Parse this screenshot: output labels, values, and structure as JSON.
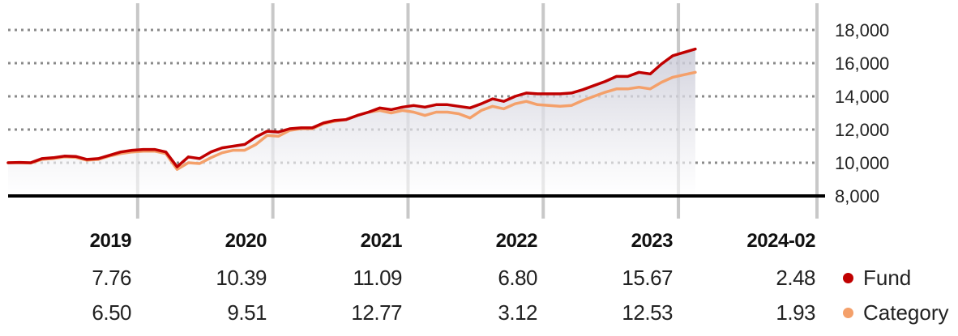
{
  "chart_data": {
    "type": "line",
    "ylim": [
      8000,
      18000
    ],
    "yticks": [
      "18,000",
      "16,000",
      "14,000",
      "12,000",
      "10,000",
      "8,000"
    ],
    "ytick_values": [
      18000,
      16000,
      14000,
      12000,
      10000,
      8000
    ],
    "grid": true,
    "x_start": "2019-01",
    "x_end": "2024-02",
    "year_boundaries": [
      "2020-01",
      "2021-01",
      "2022-01",
      "2023-01",
      "2024-01"
    ],
    "series": [
      {
        "name": "Fund",
        "color": "#c00000",
        "x": [
          "2019-01",
          "2019-02",
          "2019-03",
          "2019-04",
          "2019-05",
          "2019-06",
          "2019-07",
          "2019-08",
          "2019-09",
          "2019-10",
          "2019-11",
          "2019-12",
          "2020-01",
          "2020-02",
          "2020-03",
          "2020-04",
          "2020-05",
          "2020-06",
          "2020-07",
          "2020-08",
          "2020-09",
          "2020-10",
          "2020-11",
          "2020-12",
          "2021-01",
          "2021-02",
          "2021-03",
          "2021-04",
          "2021-05",
          "2021-06",
          "2021-07",
          "2021-08",
          "2021-09",
          "2021-10",
          "2021-11",
          "2021-12",
          "2022-01",
          "2022-02",
          "2022-03",
          "2022-04",
          "2022-05",
          "2022-06",
          "2022-07",
          "2022-08",
          "2022-09",
          "2022-10",
          "2022-11",
          "2022-12",
          "2023-01",
          "2023-02",
          "2023-03",
          "2023-04",
          "2023-05",
          "2023-06",
          "2023-07",
          "2023-08",
          "2023-09",
          "2023-10",
          "2023-11",
          "2023-12",
          "2024-01",
          "2024-02"
        ],
        "values": [
          10000,
          10020,
          10000,
          10250,
          10300,
          10400,
          10380,
          10200,
          10250,
          10450,
          10650,
          10750,
          10800,
          10800,
          10650,
          9750,
          10350,
          10250,
          10650,
          10900,
          11000,
          11100,
          11550,
          11900,
          11850,
          12050,
          12100,
          12100,
          12400,
          12550,
          12600,
          12850,
          13050,
          13300,
          13200,
          13350,
          13450,
          13350,
          13500,
          13500,
          13400,
          13300,
          13550,
          13850,
          13700,
          14000,
          14200,
          14150,
          14150,
          14150,
          14200,
          14400,
          14650,
          14900,
          15200,
          15200,
          15450,
          15350,
          15950,
          16450,
          16650,
          16850
        ]
      },
      {
        "name": "Category",
        "color": "#f4a06a",
        "x": [
          "2019-01",
          "2019-02",
          "2019-03",
          "2019-04",
          "2019-05",
          "2019-06",
          "2019-07",
          "2019-08",
          "2019-09",
          "2019-10",
          "2019-11",
          "2019-12",
          "2020-01",
          "2020-02",
          "2020-03",
          "2020-04",
          "2020-05",
          "2020-06",
          "2020-07",
          "2020-08",
          "2020-09",
          "2020-10",
          "2020-11",
          "2020-12",
          "2021-01",
          "2021-02",
          "2021-03",
          "2021-04",
          "2021-05",
          "2021-06",
          "2021-07",
          "2021-08",
          "2021-09",
          "2021-10",
          "2021-11",
          "2021-12",
          "2022-01",
          "2022-02",
          "2022-03",
          "2022-04",
          "2022-05",
          "2022-06",
          "2022-07",
          "2022-08",
          "2022-09",
          "2022-10",
          "2022-11",
          "2022-12",
          "2023-01",
          "2023-02",
          "2023-03",
          "2023-04",
          "2023-05",
          "2023-06",
          "2023-07",
          "2023-08",
          "2023-09",
          "2023-10",
          "2023-11",
          "2023-12",
          "2024-01",
          "2024-02"
        ],
        "values": [
          10000,
          10000,
          9980,
          10200,
          10250,
          10350,
          10320,
          10150,
          10200,
          10400,
          10550,
          10650,
          10700,
          10700,
          10550,
          9600,
          10000,
          9950,
          10300,
          10600,
          10750,
          10750,
          11100,
          11650,
          11600,
          11950,
          12050,
          12050,
          12350,
          12500,
          12600,
          12850,
          13050,
          13150,
          13000,
          13150,
          13050,
          12850,
          13050,
          13050,
          12950,
          12700,
          13150,
          13400,
          13250,
          13550,
          13700,
          13500,
          13450,
          13400,
          13450,
          13750,
          14000,
          14250,
          14450,
          14450,
          14550,
          14450,
          14850,
          15150,
          15300,
          15450
        ]
      }
    ]
  },
  "table": {
    "columns": [
      "2019",
      "2020",
      "2021",
      "2022",
      "2023",
      "2024-02"
    ],
    "rows": [
      {
        "label": "Fund",
        "color": "#c00000",
        "values": [
          "7.76",
          "10.39",
          "11.09",
          "6.80",
          "15.67",
          "2.48"
        ]
      },
      {
        "label": "Category",
        "color": "#f4a06a",
        "values": [
          "6.50",
          "9.51",
          "12.77",
          "3.12",
          "12.53",
          "1.93"
        ]
      }
    ]
  }
}
